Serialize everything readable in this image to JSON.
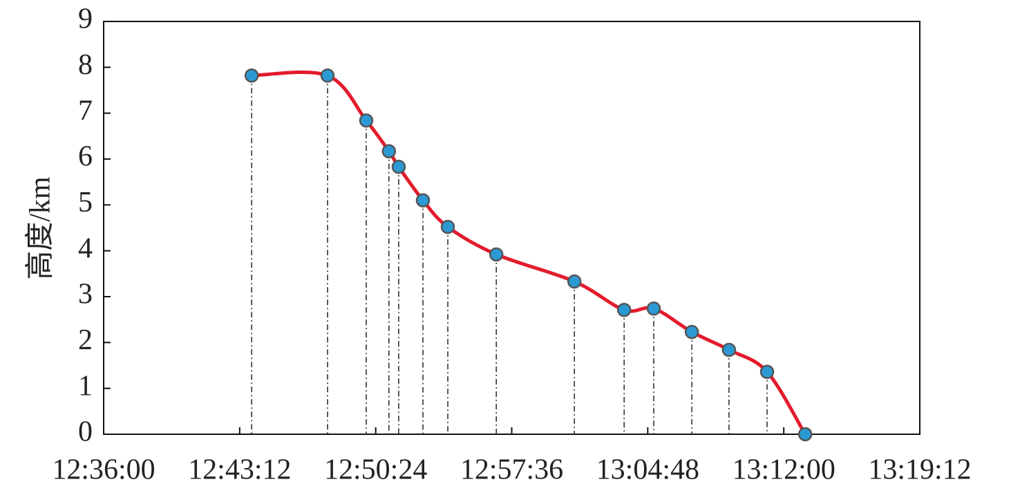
{
  "chart_data": {
    "type": "line",
    "y_label": "高度/km",
    "x": [
      "12:43:50",
      "12:47:51",
      "12:49:54",
      "12:51:06",
      "12:51:37",
      "12:52:54",
      "12:54:13",
      "12:56:47",
      "13:00:55",
      "13:03:33",
      "13:05:07",
      "13:07:08",
      "13:09:06",
      "13:11:07",
      "13:13:08"
    ],
    "series": [
      {
        "color": "#e31b2c",
        "marker_color": "#2b9ad4",
        "values": [
          7.82,
          7.82,
          6.84,
          6.17,
          5.83,
          5.1,
          4.52,
          3.92,
          3.33,
          2.71,
          2.74,
          2.23,
          1.84,
          1.36,
          0
        ]
      }
    ],
    "xlim": [
      "12:36:00",
      "13:19:12"
    ],
    "xticks": [
      "12:36:00",
      "12:43:12",
      "12:50:24",
      "12:57:36",
      "13:04:48",
      "13:12:00",
      "13:19:12"
    ],
    "ylim": [
      0,
      9
    ],
    "yticks": [
      0,
      1,
      2,
      3,
      4,
      5,
      6,
      7,
      8,
      9
    ],
    "drop_lines": true
  }
}
